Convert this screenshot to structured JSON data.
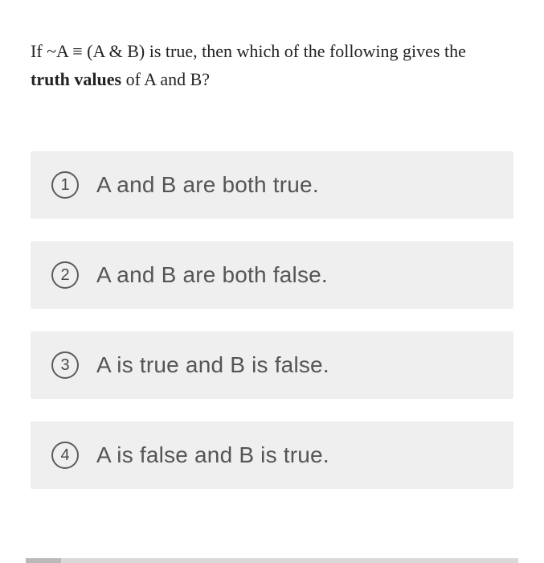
{
  "question": {
    "line1_prefix": "If ~A ≡ (A & B) is true, then which of the following gives the",
    "line2_bold": "truth values",
    "line2_rest": " of A and B?"
  },
  "options": [
    {
      "number": "1",
      "text": "A and B are both true."
    },
    {
      "number": "2",
      "text": "A and B are both false."
    },
    {
      "number": "3",
      "text": "A is true and B is false."
    },
    {
      "number": "4",
      "text": "A is false and B is true."
    }
  ],
  "colors": {
    "option_bg": "#efefef",
    "badge_border": "#5c5c5c",
    "badge_text": "#4a4a4a",
    "option_text": "#555555",
    "question_text": "#222222",
    "scrollbar_track": "#d9d9d9",
    "scrollbar_thumb": "#b9b9b9"
  }
}
